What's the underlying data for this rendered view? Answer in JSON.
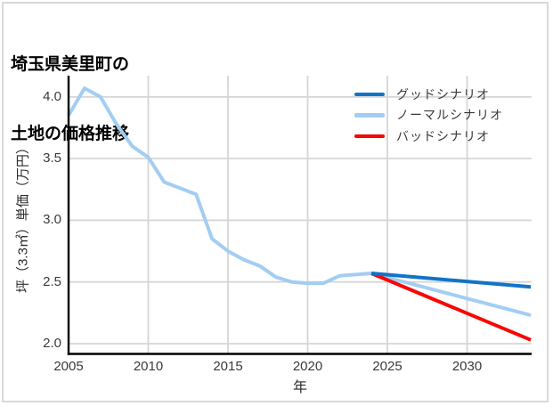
{
  "colors": {
    "background": "#ffffff",
    "border": "#d9d9d9",
    "grid": "#d6d6d6",
    "axis": "#000000",
    "tick_text": "#3a3a3a",
    "good_blue": "#1273c8",
    "normal_light_blue": "#a3cdf2",
    "bad_red": "#f90606"
  },
  "chart_data": {
    "type": "line",
    "title_lines": [
      "埼玉県美里町の",
      "土地の価格推移"
    ],
    "xlabel": "年",
    "ylabel": "坪（3.3㎡）単価（万円）",
    "x_ticks": [
      "2005",
      "2010",
      "2015",
      "2020",
      "2025",
      "2030"
    ],
    "y_ticks": [
      "2.0",
      "2.5",
      "3.0",
      "3.5",
      "4.0"
    ],
    "xlim": [
      2005,
      2034.05
    ],
    "ylim": [
      1.917,
      4.172
    ],
    "grid": true,
    "legend_position": "upper right",
    "series": [
      {
        "key": "historical",
        "name": "",
        "in_legend": false,
        "color": "#a3cdf2",
        "x": [
          2005,
          2006,
          2007,
          2008,
          2009,
          2010,
          2011,
          2012,
          2013,
          2014,
          2015,
          2016,
          2017,
          2018,
          2019,
          2020,
          2021,
          2022,
          2023,
          2024
        ],
        "values": [
          3.85,
          4.07,
          4.0,
          3.78,
          3.6,
          3.51,
          3.31,
          3.26,
          3.21,
          2.85,
          2.75,
          2.68,
          2.63,
          2.54,
          2.5,
          2.49,
          2.49,
          2.55,
          2.56,
          2.57
        ]
      },
      {
        "key": "good",
        "name": "グッドシナリオ",
        "in_legend": true,
        "color": "#1273c8",
        "x": [
          2024,
          2034
        ],
        "values": [
          2.57,
          2.46
        ]
      },
      {
        "key": "normal",
        "name": "ノーマルシナリオ",
        "in_legend": true,
        "color": "#a3cdf2",
        "x": [
          2024,
          2034
        ],
        "values": [
          2.57,
          2.23
        ]
      },
      {
        "key": "bad",
        "name": "バッドシナリオ",
        "in_legend": true,
        "color": "#f90606",
        "x": [
          2024,
          2034
        ],
        "values": [
          2.57,
          2.03
        ]
      }
    ]
  }
}
